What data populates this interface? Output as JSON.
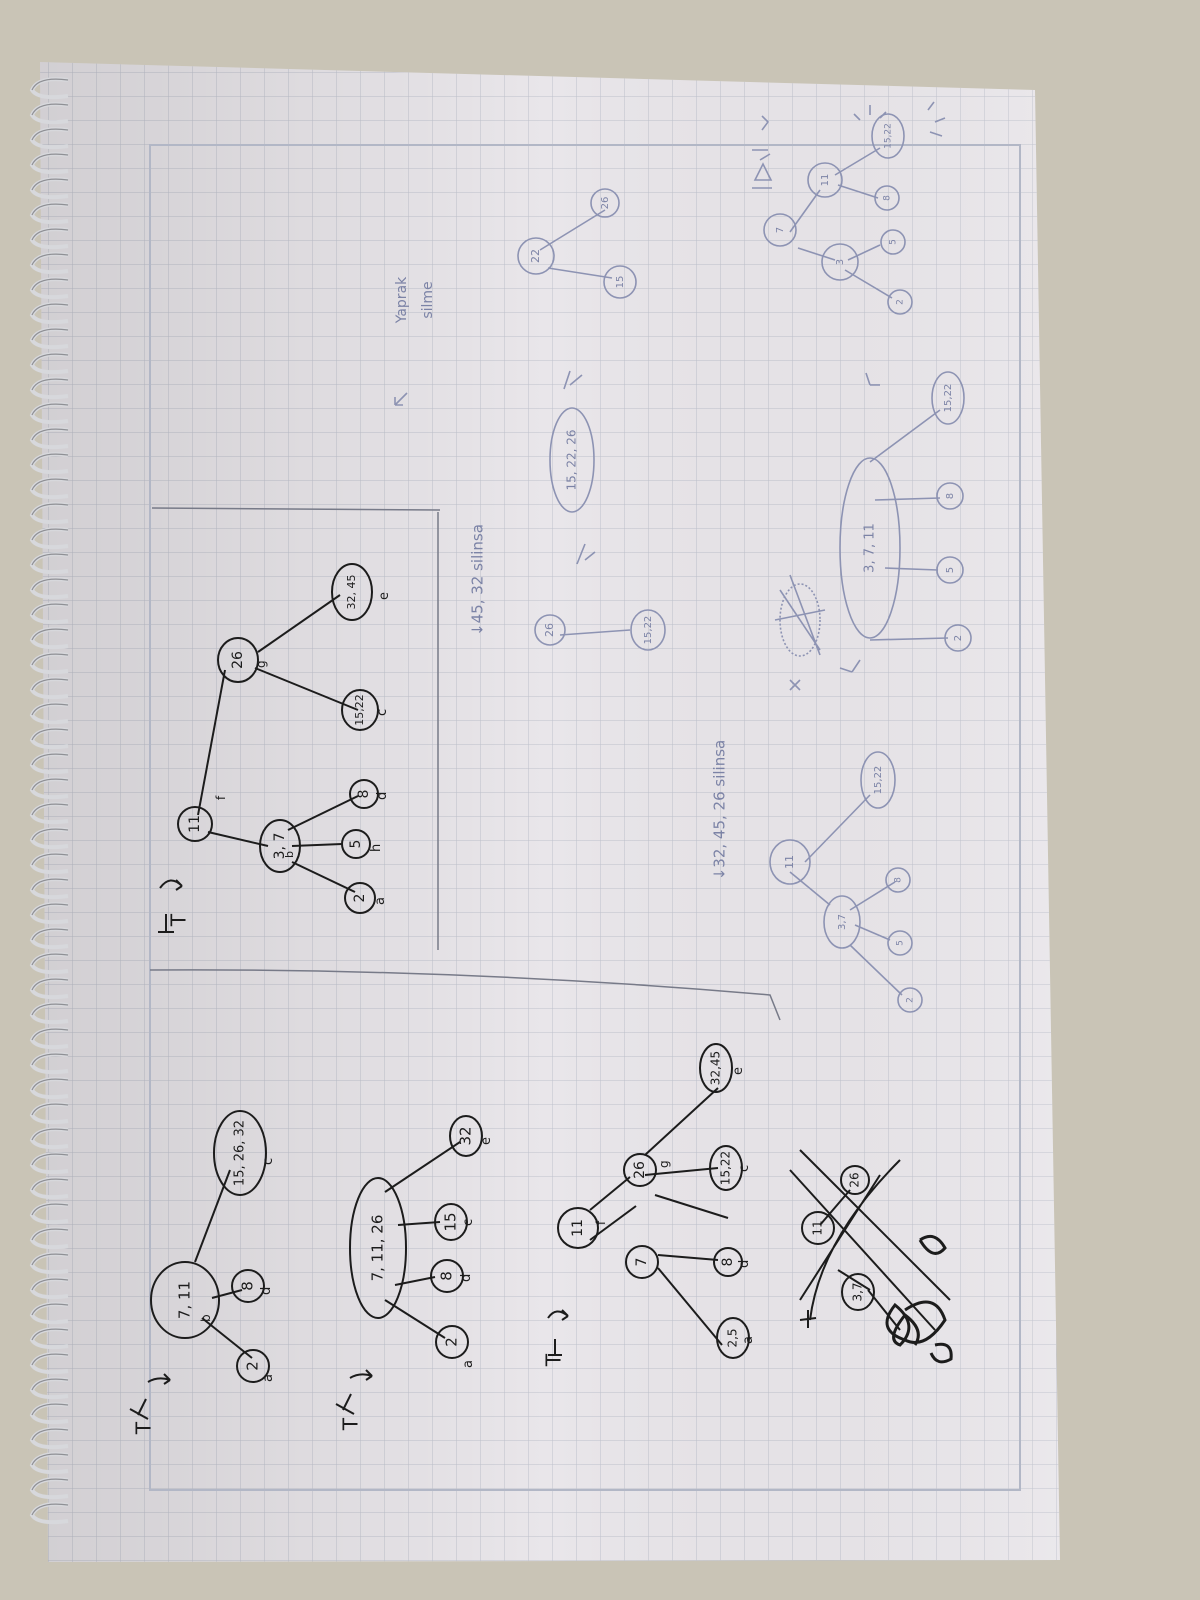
{
  "notebook": {
    "colors": {
      "background": "#c9c4b6",
      "paper": "#e9e6ea",
      "grid": "#b9bdc9",
      "spiral": "#d7d8dc",
      "ink": "#1c1c1c",
      "pencil": "#8d93b3"
    },
    "labels": {
      "tree_marker": "T",
      "yaprak_silme_1": "Yaprak",
      "yaprak_silme_2": "silme",
      "instruction_1": "↓45, 32 silinsa",
      "instruction_2": "↓32, 45, 26 silinsa"
    },
    "nodes": {
      "t1_root": "7, 11",
      "t1_leaf_2": "2",
      "t1_leaf_8": "8",
      "t1_leaf_right": "15, 26, 32",
      "t2_root": "7, 11, 26",
      "t2_leaf_2": "2",
      "t2_leaf_8": "8",
      "t2_leaf_15": "15",
      "t2_leaf_32": "32",
      "t3_root": "11",
      "t3_left": "7",
      "t3_right": "26",
      "t3_leaf_2": "2,5",
      "t3_leaf_8": "8",
      "t3_leaf_15": "15,22",
      "t3_leaf_32": "32,45",
      "t4_root": "11",
      "t4_left": "3, 7",
      "t4_right": "26",
      "t4_leaf_2": "2",
      "t4_leaf_5": "5",
      "t4_leaf_8": "8",
      "t4_leaf_15": "15,22",
      "t4_leaf_32": "32, 45",
      "p_26": "26",
      "p_1522": "15,22",
      "p_merged": "15, 22, 26",
      "p_22": "22",
      "p_26b": "26",
      "p_15": "15",
      "q_11": "11",
      "q_37": "3,7",
      "q_2": "2",
      "q_5": "5",
      "q_8": "8",
      "q_1522": "15,22",
      "q_big": "3, 7, 11",
      "q_2b": "2",
      "q_5b": "5",
      "q_8b": "8",
      "q_1522b": "15,22",
      "r_7": "7",
      "r_11": "11",
      "r_3": "3",
      "r_2": "2",
      "r_5": "5",
      "r_8": "8",
      "r_1522": "15,22",
      "x_11": "11",
      "x_26": "26",
      "x_37": "3,7"
    },
    "edge_letters": {
      "a": "a",
      "b": "b",
      "c": "c",
      "d": "d",
      "e": "e",
      "f": "f",
      "g": "g",
      "h": "h"
    }
  }
}
